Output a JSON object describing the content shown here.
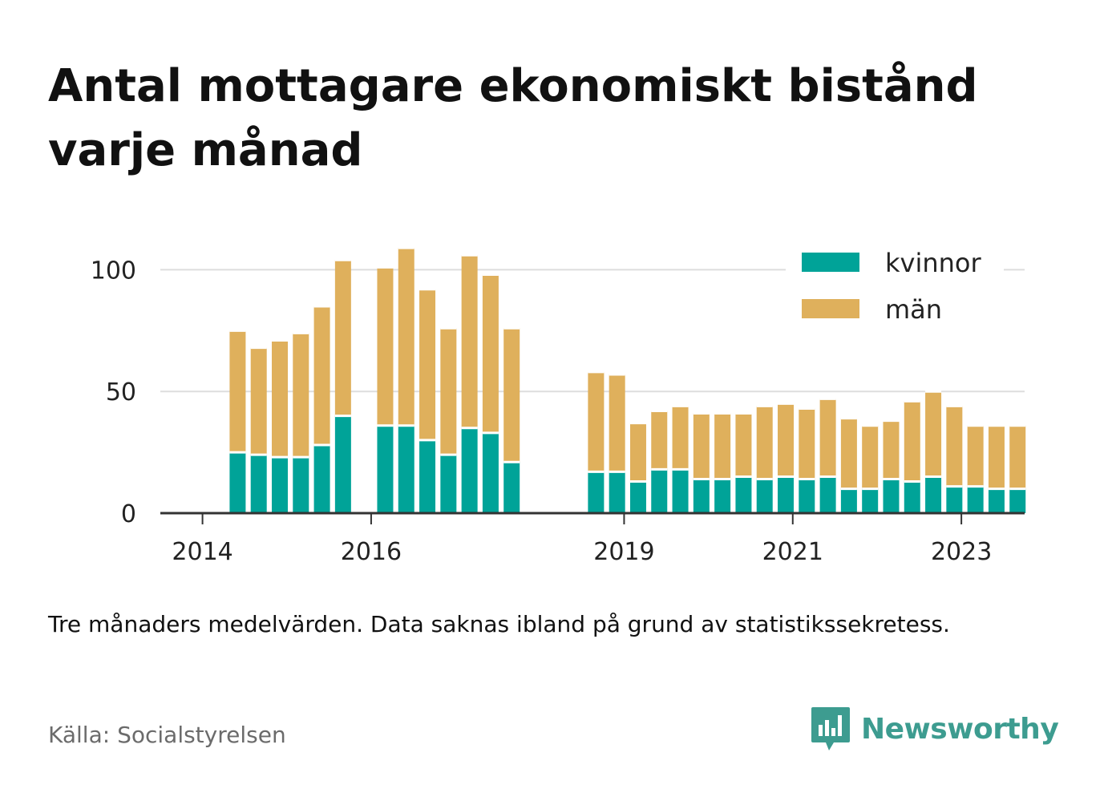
{
  "header": {
    "title": "Antal mottagare ekonomiskt bistånd varje månad"
  },
  "footer": {
    "note": "Tre månaders medelvärden. Data saknas ibland på grund av statistikssekretess.",
    "source": "Källa: Socialstyrelsen",
    "brand": "Newsworthy",
    "brand_icon": "newsworthy-logo-icon"
  },
  "colors": {
    "kvinnor": "#00a398",
    "man": "#dfb05c",
    "grid": "#dddddd",
    "axis": "#333333",
    "brand": "#3d9c90"
  },
  "chart_data": {
    "type": "bar",
    "stacked": true,
    "x": [
      "2014-06",
      "2014-09",
      "2014-12",
      "2015-03",
      "2015-06",
      "2015-09",
      "2016-03",
      "2016-06",
      "2016-09",
      "2016-12",
      "2017-03",
      "2017-06",
      "2017-09",
      "2018-09",
      "2018-12",
      "2019-03",
      "2019-06",
      "2019-09",
      "2019-12",
      "2020-03",
      "2020-06",
      "2020-09",
      "2020-12",
      "2021-03",
      "2021-06",
      "2021-09",
      "2021-12",
      "2022-03",
      "2022-06",
      "2022-09",
      "2022-12",
      "2023-03",
      "2023-06",
      "2023-09"
    ],
    "series": [
      {
        "name": "kvinnor",
        "color": "#00a398",
        "values": [
          25,
          24,
          23,
          23,
          28,
          40,
          36,
          36,
          30,
          24,
          35,
          33,
          21,
          17,
          17,
          13,
          18,
          18,
          14,
          14,
          15,
          14,
          15,
          14,
          15,
          10,
          10,
          14,
          13,
          15,
          11,
          11,
          10,
          10
        ]
      },
      {
        "name": "män",
        "color": "#dfb05c",
        "values": [
          50,
          44,
          48,
          51,
          57,
          64,
          65,
          73,
          62,
          52,
          71,
          65,
          55,
          41,
          40,
          24,
          24,
          26,
          27,
          27,
          26,
          30,
          30,
          29,
          32,
          29,
          26,
          24,
          33,
          35,
          33,
          25,
          26,
          26
        ]
      }
    ],
    "xticks": [
      {
        "label": "2014",
        "date": "2014-01"
      },
      {
        "label": "2016",
        "date": "2016-01"
      },
      {
        "label": "2019",
        "date": "2019-01"
      },
      {
        "label": "2021",
        "date": "2021-01"
      },
      {
        "label": "2023",
        "date": "2023-01"
      }
    ],
    "yticks": [
      0,
      50,
      100
    ],
    "ylim": [
      0,
      112
    ],
    "xlim": [
      "2013-07",
      "2023-10"
    ],
    "grid": true,
    "legend": "top-right",
    "title": "Antal mottagare ekonomiskt bistånd varje månad",
    "xlabel": "",
    "ylabel": ""
  }
}
